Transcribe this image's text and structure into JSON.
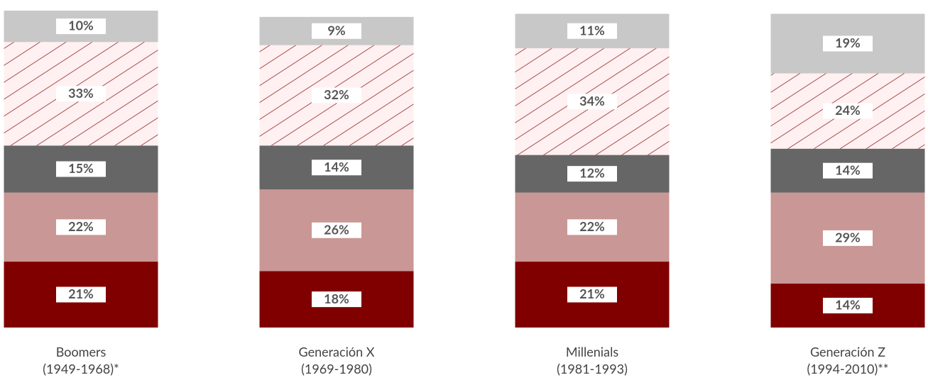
{
  "chart_data": {
    "type": "stacked_bar",
    "categories": [
      "Boomers\n(1949-1968)*",
      "Generación X\n(1969-1980)",
      "Millenials\n(1981-1993)",
      "Generación Z\n(1994-2010)**"
    ],
    "series": [
      {
        "color": "#800000",
        "values": [
          21,
          18,
          21,
          14
        ],
        "value_labels": [
          "21%",
          "18%",
          "21%",
          "14%"
        ]
      },
      {
        "color": "#c99795",
        "values": [
          22,
          26,
          22,
          29
        ],
        "value_labels": [
          "22%",
          "26%",
          "22%",
          "29%"
        ]
      },
      {
        "color": "#666666",
        "values": [
          15,
          14,
          12,
          14
        ],
        "value_labels": [
          "15%",
          "14%",
          "12%",
          "14%"
        ]
      },
      {
        "color": "#8b1a1a",
        "hatch": true,
        "values": [
          33,
          32,
          34,
          24
        ],
        "value_labels": [
          "33%",
          "32%",
          "34%",
          "24%"
        ]
      },
      {
        "color": "#c8c8c8",
        "values": [
          10,
          9,
          11,
          19
        ],
        "value_labels": [
          "10%",
          "9%",
          "11%",
          "19%"
        ]
      }
    ]
  }
}
